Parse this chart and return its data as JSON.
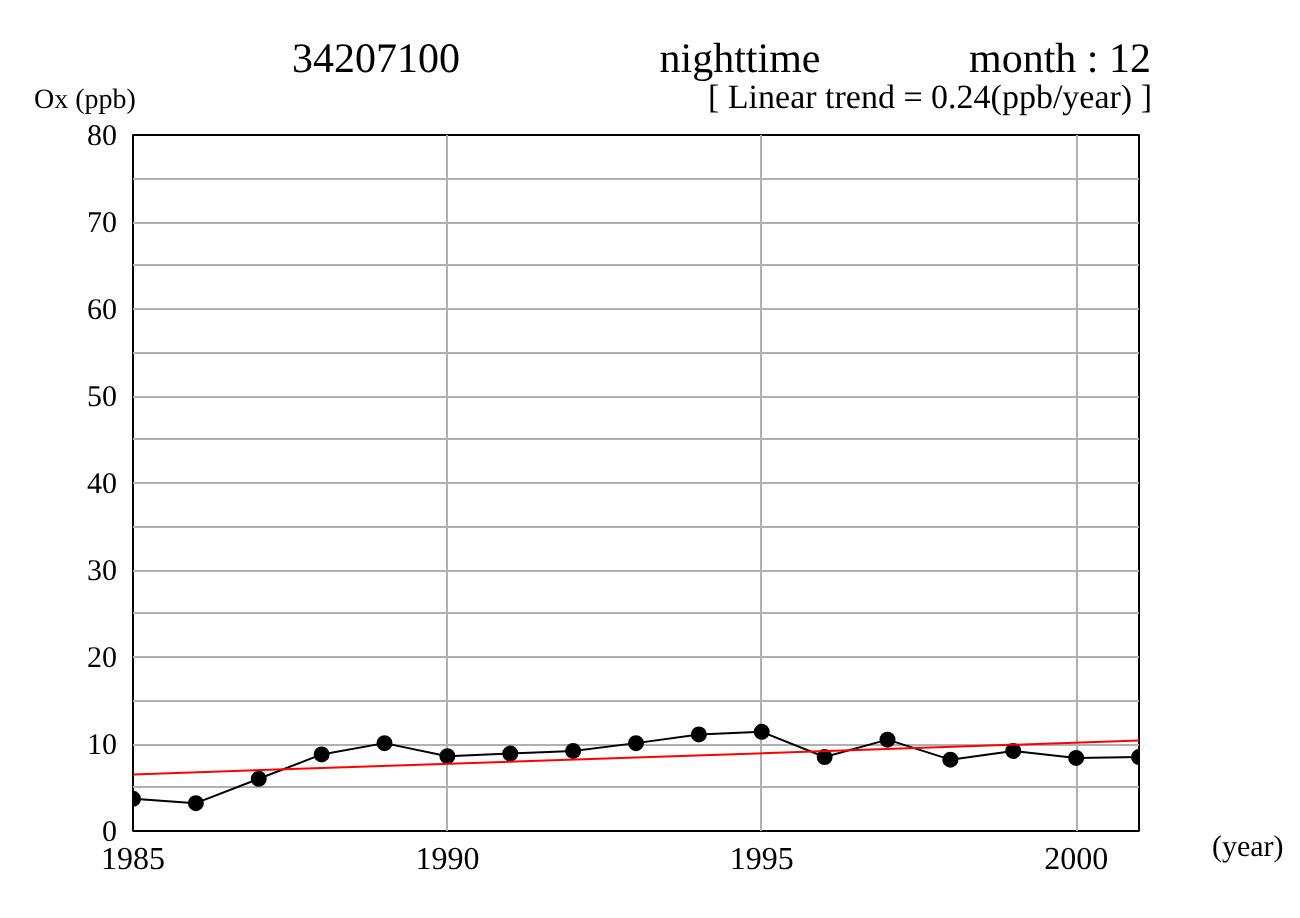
{
  "chart_data": {
    "type": "line",
    "title": "34207100",
    "subtitle": "nighttime",
    "annotations": [
      "month : 12",
      "[ Linear trend = 0.24(ppb/year) ]"
    ],
    "xlabel": "(year)",
    "ylabel": "Ox (ppb)",
    "x": [
      1985,
      1986,
      1987,
      1988,
      1989,
      1990,
      1991,
      1992,
      1993,
      1994,
      1995,
      1996,
      1997,
      1998,
      1999,
      2000,
      2001
    ],
    "series": [
      {
        "color": "#000000",
        "marker": "circle",
        "values": [
          3.7,
          3.2,
          6.0,
          8.8,
          10.1,
          8.6,
          8.9,
          9.2,
          10.1,
          11.1,
          11.4,
          8.5,
          10.5,
          8.2,
          9.2,
          8.4,
          8.5
        ]
      },
      {
        "type": "line",
        "color": "#ff0000",
        "marker": "none",
        "x": [
          1985,
          2001
        ],
        "values": [
          6.5,
          10.4
        ]
      }
    ],
    "xlim": [
      1985,
      2001
    ],
    "ylim": [
      0,
      80
    ],
    "xticks": [
      1985,
      1990,
      1995,
      2000
    ],
    "yticks": [
      0,
      {
        "value": 5,
        "label": null
      },
      10,
      {
        "value": 15,
        "label": null
      },
      20,
      {
        "value": 25,
        "label": null
      },
      30,
      {
        "value": 35,
        "label": null
      },
      40,
      {
        "value": 45,
        "label": null
      },
      50,
      {
        "value": 55,
        "label": null
      },
      60,
      {
        "value": 65,
        "label": null
      },
      70,
      {
        "value": 75,
        "label": null
      },
      80
    ],
    "grid": true
  }
}
